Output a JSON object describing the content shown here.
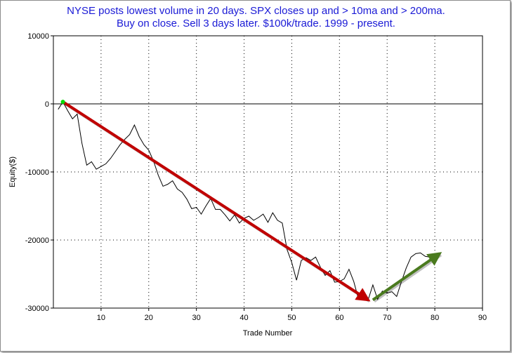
{
  "chart_data": {
    "type": "line",
    "title_lines": [
      "NYSE posts lowest volume in 20 days. SPX closes up and > 10ma and > 200ma.",
      "Buy on close. Sell 3 days later. $100k/trade. 1999 - present."
    ],
    "xlabel": "Trade Number",
    "ylabel": "Equity($)",
    "xlim": [
      0,
      90
    ],
    "ylim": [
      -30000,
      10000
    ],
    "x_ticks": [
      10,
      20,
      30,
      40,
      50,
      60,
      70,
      80,
      90
    ],
    "y_ticks": [
      10000,
      0,
      -10000,
      -20000,
      -30000
    ],
    "grid": true,
    "series": [
      {
        "color": "#000000",
        "x": [
          1,
          2,
          3,
          4,
          5,
          6,
          7,
          8,
          9,
          10,
          11,
          12,
          13,
          14,
          15,
          16,
          17,
          18,
          19,
          20,
          21,
          22,
          23,
          24,
          25,
          26,
          27,
          28,
          29,
          30,
          31,
          32,
          33,
          34,
          35,
          36,
          37,
          38,
          39,
          40,
          41,
          42,
          43,
          44,
          45,
          46,
          47,
          48,
          49,
          50,
          51,
          52,
          53,
          54,
          55,
          56,
          57,
          58,
          59,
          60,
          61,
          62,
          63,
          64,
          65,
          66,
          67,
          68,
          69,
          70,
          71,
          72,
          73,
          74,
          75,
          76,
          77,
          78,
          79,
          80,
          81
        ],
        "values": [
          -800,
          300,
          -1000,
          -2200,
          -1500,
          -5800,
          -9000,
          -8500,
          -9600,
          -9200,
          -8800,
          -8000,
          -7000,
          -6000,
          -5200,
          -4500,
          -3100,
          -4800,
          -6000,
          -6800,
          -8400,
          -10500,
          -12100,
          -11800,
          -11300,
          -12500,
          -13000,
          -14000,
          -15400,
          -15200,
          -16200,
          -15000,
          -13900,
          -15500,
          -15500,
          -16300,
          -17200,
          -16300,
          -17500,
          -16800,
          -16500,
          -17100,
          -16700,
          -16200,
          -17400,
          -16000,
          -17100,
          -17500,
          -21400,
          -23300,
          -25900,
          -23000,
          -22600,
          -23000,
          -22500,
          -24000,
          -25200,
          -24500,
          -26200,
          -26100,
          -25700,
          -24300,
          -26100,
          -28700,
          -28800,
          -28800,
          -26600,
          -28700,
          -27500,
          -27800,
          -27600,
          -28300,
          -26100,
          -24100,
          -22500,
          -22000,
          -21900,
          -22400,
          -22500,
          -22000,
          -22200
        ]
      }
    ],
    "annotations": [
      {
        "kind": "arrow",
        "color": "#c00000",
        "from": [
          2,
          300
        ],
        "to": [
          66,
          -28800
        ]
      },
      {
        "kind": "arrow",
        "color": "#4a7a1e",
        "from": [
          67,
          -28800
        ],
        "to": [
          81,
          -22000
        ]
      },
      {
        "kind": "marker",
        "color": "#00dd00",
        "at": [
          2,
          300
        ]
      }
    ]
  }
}
